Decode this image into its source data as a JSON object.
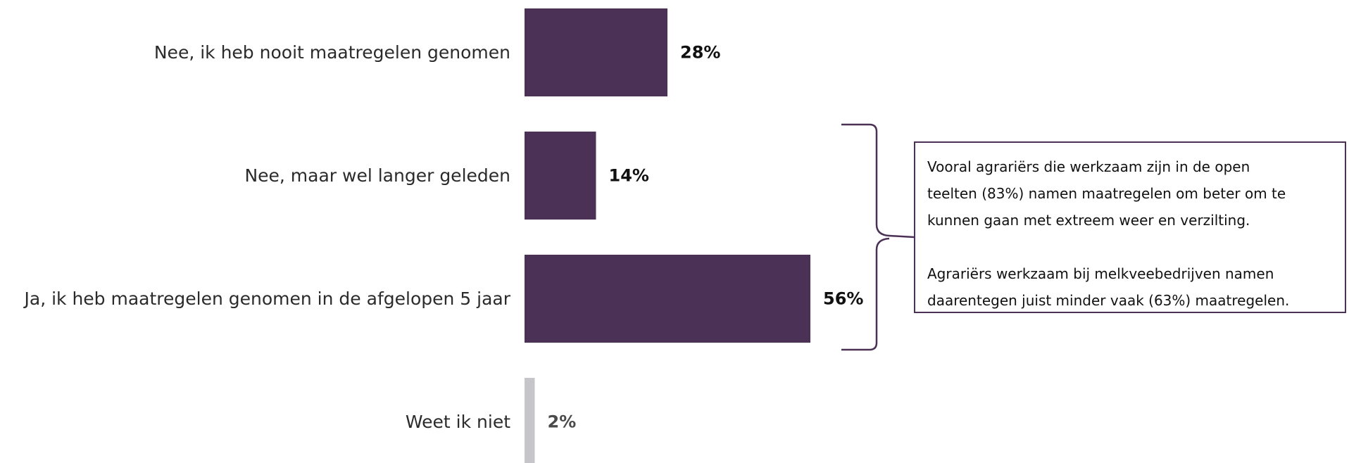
{
  "chart_data": {
    "type": "bar",
    "orientation": "horizontal",
    "categories": [
      "Nee, ik heb nooit maatregelen genomen",
      "Nee, maar wel langer geleden",
      "Ja, ik heb maatregelen genomen in de afgelopen 5 jaar",
      "Weet ik niet"
    ],
    "values": [
      28,
      14,
      56,
      2
    ],
    "value_labels": [
      "28%",
      "14%",
      "56%",
      "2%"
    ],
    "unit": "%",
    "title": "",
    "xlabel": "",
    "ylabel": "",
    "xlim": [
      0,
      60
    ],
    "grid": false,
    "legend": "none",
    "colors": {
      "main": "#4a3155",
      "muted": "#c6c6ca"
    },
    "bar_colors": [
      "main",
      "main",
      "main",
      "muted"
    ],
    "annotation": {
      "paragraphs": [
        "Vooral agrariërs die werkzaam zijn in de open\nteelten (83%) namen maatregelen om beter om te\nkunnen gaan met extreem weer en verzilting.",
        "Agrariërs werkzaam bij melkveebedrijven namen\ndaarentegen juist minder vaak (63%) maatregelen."
      ],
      "brackets_categories": [
        "Nee, maar wel langer geleden",
        "Ja, ik heb maatregelen genomen in de afgelopen 5 jaar"
      ]
    }
  }
}
